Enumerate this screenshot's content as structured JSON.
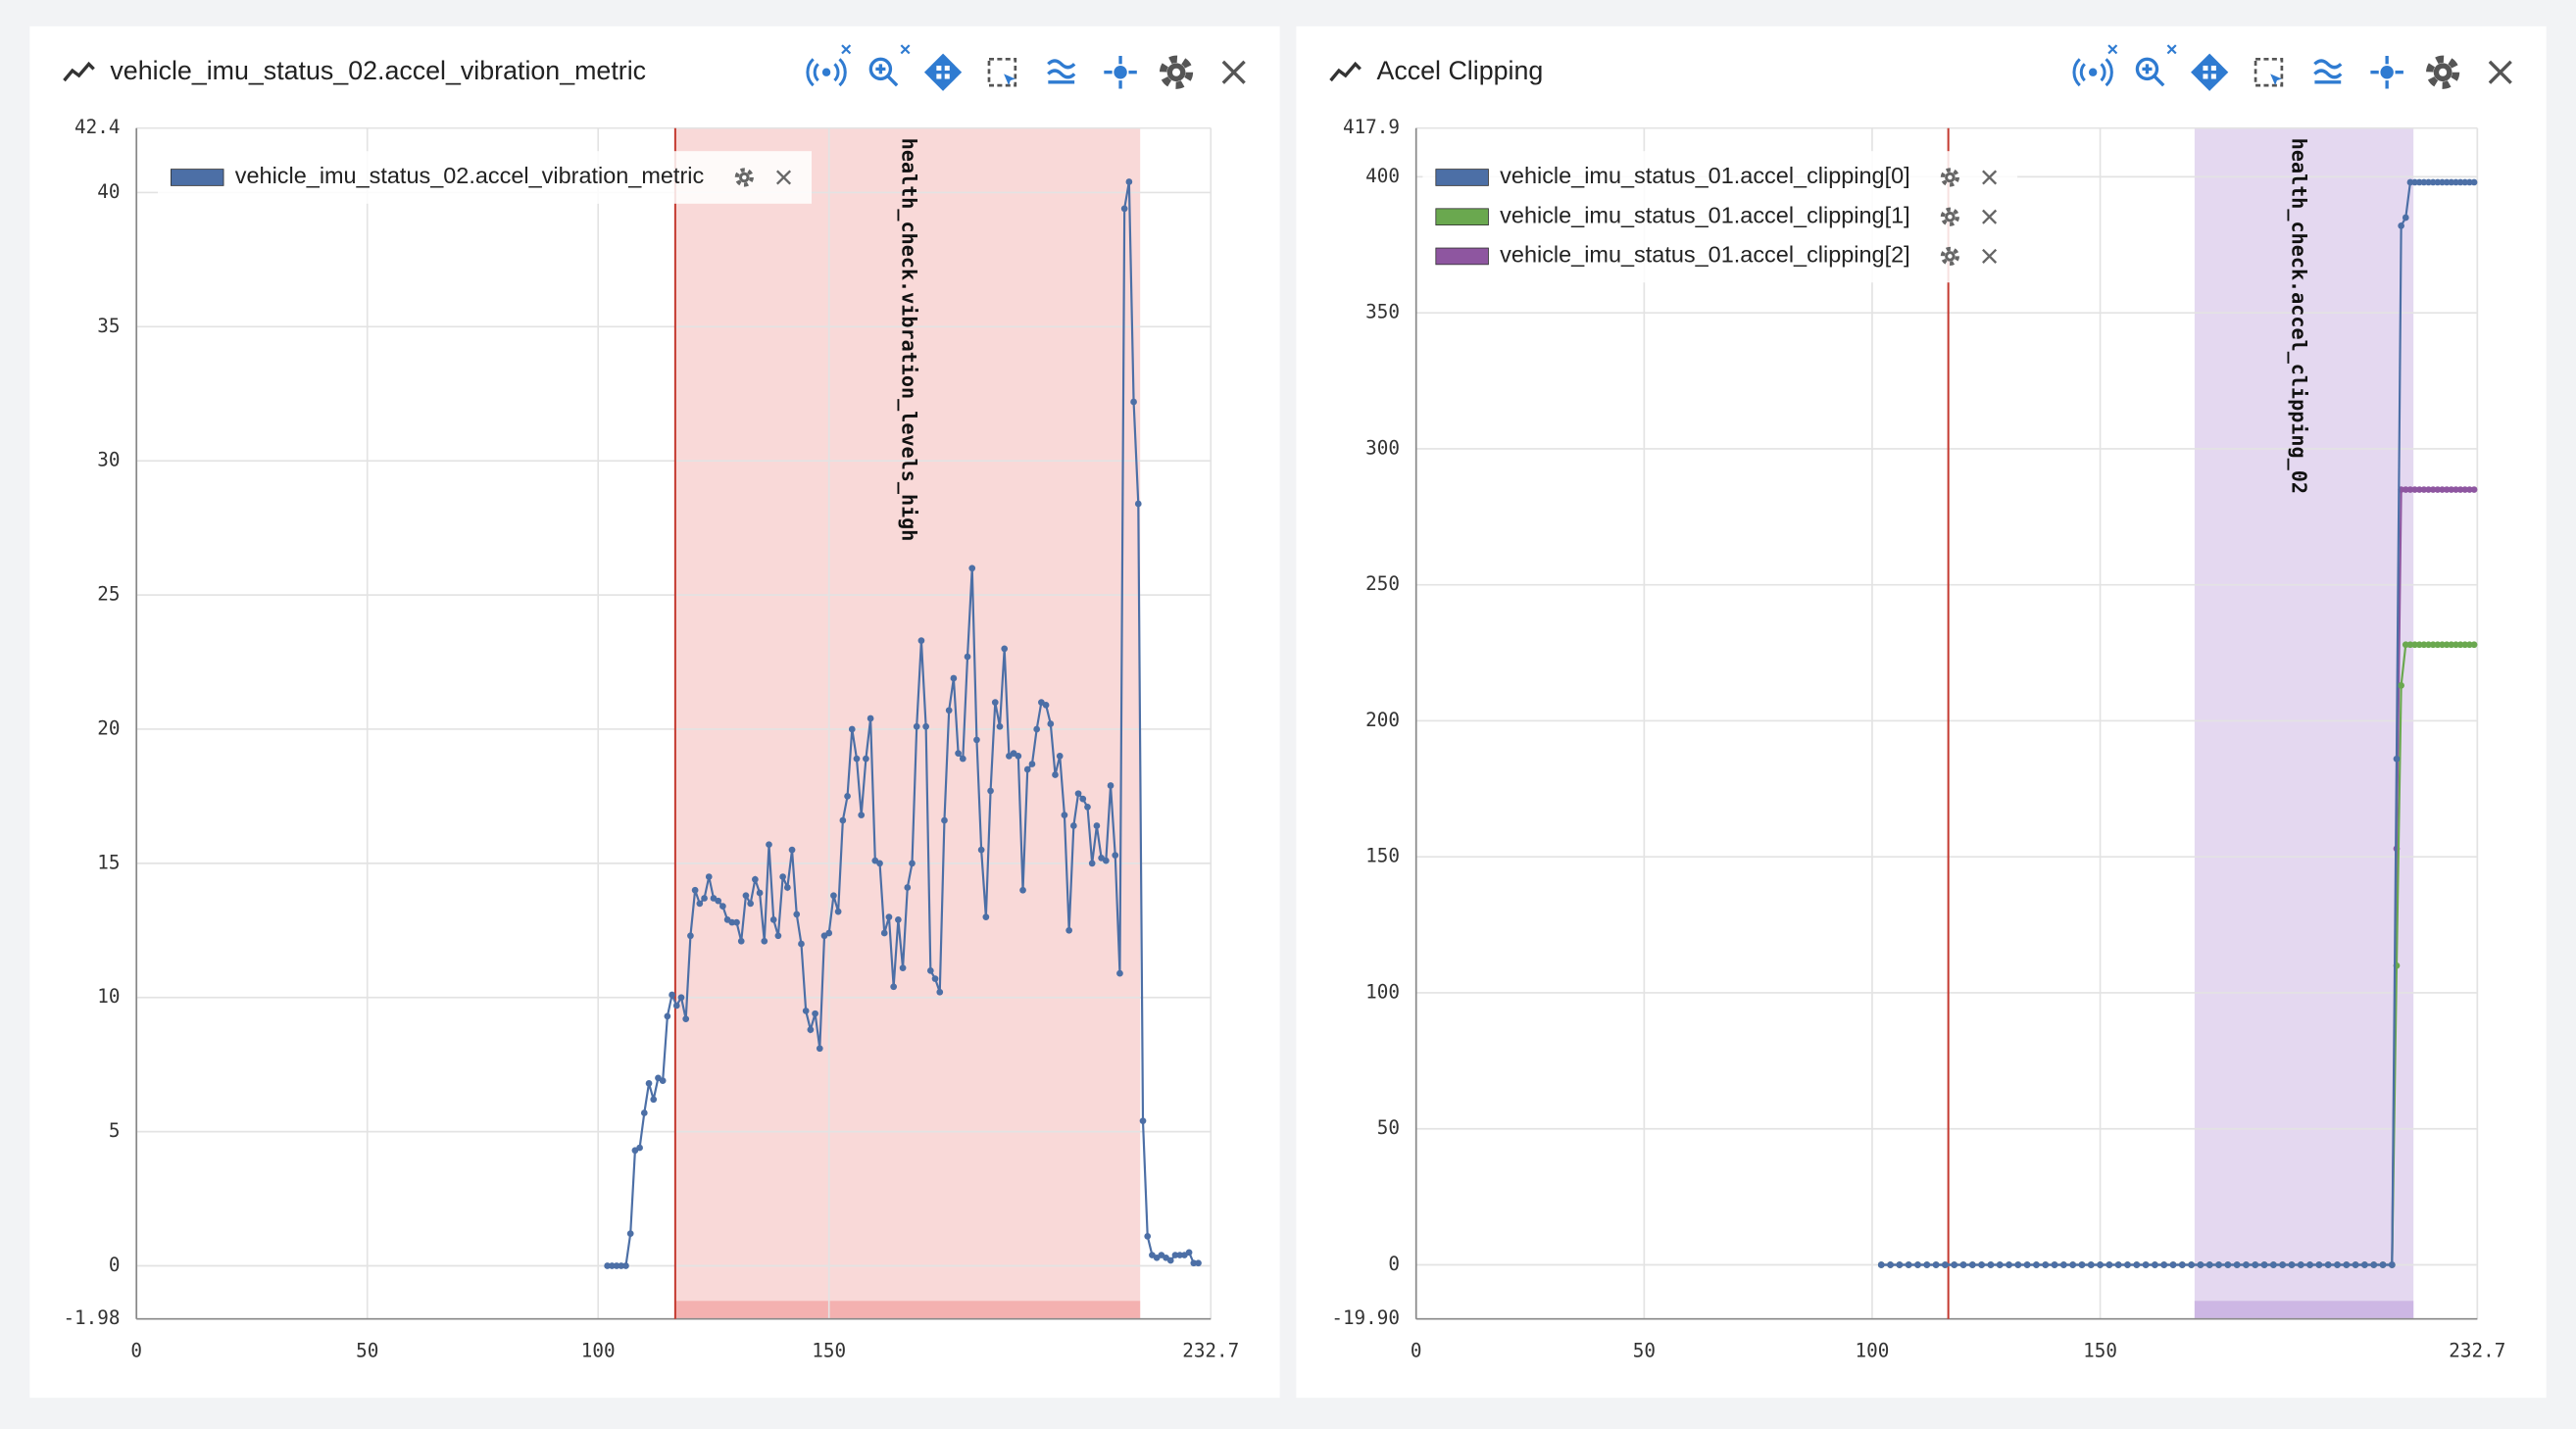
{
  "chart_data": [
    {
      "type": "line",
      "title": "vehicle_imu_status_02.accel_vibration_metric",
      "x": [
        102,
        103,
        104,
        105,
        106,
        107,
        108,
        109,
        110,
        111,
        112,
        113,
        114,
        115,
        116,
        117,
        118,
        119,
        120,
        121,
        122,
        123,
        124,
        125,
        126,
        127,
        128,
        129,
        130,
        131,
        132,
        133,
        134,
        135,
        136,
        137,
        138,
        139,
        140,
        141,
        142,
        143,
        144,
        145,
        146,
        147,
        148,
        149,
        150,
        151,
        152,
        153,
        154,
        155,
        156,
        157,
        158,
        159,
        160,
        161,
        162,
        163,
        164,
        165,
        166,
        167,
        168,
        169,
        170,
        171,
        172,
        173,
        174,
        175,
        176,
        177,
        178,
        179,
        180,
        181,
        182,
        183,
        184,
        185,
        186,
        187,
        188,
        189,
        190,
        191,
        192,
        193,
        194,
        195,
        196,
        197,
        198,
        199,
        200,
        201,
        202,
        203,
        204,
        205,
        206,
        207,
        208,
        209,
        210,
        211,
        212,
        213,
        214,
        215,
        216,
        217,
        218,
        219,
        220,
        221,
        222,
        223,
        224,
        225,
        226,
        227,
        228,
        229,
        230
      ],
      "series": [
        {
          "name": "vehicle_imu_status_02.accel_vibration_metric",
          "color": "#4c6fa6",
          "values": [
            0,
            0,
            0,
            0,
            0,
            1.2,
            4.3,
            4.4,
            5.7,
            6.8,
            6.2,
            7.0,
            6.9,
            9.3,
            10.1,
            9.7,
            10.0,
            9.2,
            12.3,
            14.0,
            13.5,
            13.7,
            14.5,
            13.7,
            13.6,
            13.4,
            12.9,
            12.8,
            12.8,
            12.1,
            13.8,
            13.5,
            14.4,
            13.9,
            12.1,
            15.7,
            12.9,
            12.3,
            14.5,
            14.1,
            15.5,
            13.1,
            12.0,
            9.5,
            8.8,
            9.4,
            8.1,
            12.3,
            12.4,
            13.8,
            13.2,
            16.6,
            17.5,
            20.0,
            18.9,
            16.8,
            18.9,
            20.4,
            15.1,
            15.0,
            12.4,
            13.0,
            10.4,
            12.9,
            11.1,
            14.1,
            15.0,
            20.1,
            23.3,
            20.1,
            11.0,
            10.7,
            10.2,
            16.6,
            20.7,
            21.9,
            19.1,
            18.9,
            22.7,
            26.0,
            19.6,
            15.5,
            13.0,
            17.7,
            21.0,
            20.1,
            23.0,
            19.0,
            19.1,
            19.0,
            14.0,
            18.5,
            18.7,
            20.0,
            21.0,
            20.9,
            20.2,
            18.3,
            19.0,
            16.8,
            12.5,
            16.4,
            17.6,
            17.4,
            17.1,
            15.0,
            16.4,
            15.2,
            15.1,
            17.9,
            15.3,
            10.9,
            39.4,
            40.4,
            32.2,
            28.4,
            5.4,
            1.1,
            0.4,
            0.3,
            0.4,
            0.3,
            0.2,
            0.4,
            0.4,
            0.4,
            0.5,
            0.1,
            0.1
          ]
        }
      ],
      "xlim": [
        0,
        232.7
      ],
      "xticks": [
        0,
        50,
        100,
        150,
        232.7
      ],
      "ylim": [
        -1.98,
        42.4
      ],
      "yticks": [
        -1.98,
        0,
        5,
        10,
        15,
        20,
        25,
        30,
        35,
        40,
        42.4
      ],
      "grid": true,
      "vline": {
        "x": 116.7,
        "color": "#c43a30"
      },
      "span": {
        "start": 116.7,
        "end": 217.4,
        "label": "health_check.vibration_levels_high",
        "color": "#f9d9d8",
        "band_color": "#f4b1b0"
      }
    },
    {
      "type": "line",
      "title": "Accel Clipping",
      "x": [
        102,
        104,
        106,
        108,
        110,
        112,
        114,
        116,
        118,
        120,
        122,
        124,
        126,
        128,
        130,
        132,
        134,
        136,
        138,
        140,
        142,
        144,
        146,
        148,
        150,
        152,
        154,
        156,
        158,
        160,
        162,
        164,
        166,
        168,
        170,
        172,
        174,
        176,
        178,
        180,
        182,
        184,
        186,
        188,
        190,
        192,
        194,
        196,
        198,
        200,
        202,
        204,
        206,
        208,
        210,
        212,
        214,
        215,
        216,
        217,
        218,
        219,
        220,
        221,
        222,
        223,
        224,
        225,
        226,
        227,
        228,
        229,
        230,
        231,
        232
      ],
      "series": [
        {
          "name": "vehicle_imu_status_01.accel_clipping[0]",
          "color": "#4c6fa6",
          "values": [
            0,
            0,
            0,
            0,
            0,
            0,
            0,
            0,
            0,
            0,
            0,
            0,
            0,
            0,
            0,
            0,
            0,
            0,
            0,
            0,
            0,
            0,
            0,
            0,
            0,
            0,
            0,
            0,
            0,
            0,
            0,
            0,
            0,
            0,
            0,
            0,
            0,
            0,
            0,
            0,
            0,
            0,
            0,
            0,
            0,
            0,
            0,
            0,
            0,
            0,
            0,
            0,
            0,
            0,
            0,
            0,
            0,
            186,
            382,
            385,
            398,
            398,
            398,
            398,
            398,
            398,
            398,
            398,
            398,
            398,
            398,
            398,
            398,
            398,
            398
          ]
        },
        {
          "name": "vehicle_imu_status_01.accel_clipping[1]",
          "color": "#6aa84f",
          "values": [
            0,
            0,
            0,
            0,
            0,
            0,
            0,
            0,
            0,
            0,
            0,
            0,
            0,
            0,
            0,
            0,
            0,
            0,
            0,
            0,
            0,
            0,
            0,
            0,
            0,
            0,
            0,
            0,
            0,
            0,
            0,
            0,
            0,
            0,
            0,
            0,
            0,
            0,
            0,
            0,
            0,
            0,
            0,
            0,
            0,
            0,
            0,
            0,
            0,
            0,
            0,
            0,
            0,
            0,
            0,
            0,
            0,
            110,
            213,
            228,
            228,
            228,
            228,
            228,
            228,
            228,
            228,
            228,
            228,
            228,
            228,
            228,
            228,
            228,
            228
          ]
        },
        {
          "name": "vehicle_imu_status_01.accel_clipping[2]",
          "color": "#8e56a0",
          "values": [
            0,
            0,
            0,
            0,
            0,
            0,
            0,
            0,
            0,
            0,
            0,
            0,
            0,
            0,
            0,
            0,
            0,
            0,
            0,
            0,
            0,
            0,
            0,
            0,
            0,
            0,
            0,
            0,
            0,
            0,
            0,
            0,
            0,
            0,
            0,
            0,
            0,
            0,
            0,
            0,
            0,
            0,
            0,
            0,
            0,
            0,
            0,
            0,
            0,
            0,
            0,
            0,
            0,
            0,
            0,
            0,
            0,
            153,
            285,
            285,
            285,
            285,
            285,
            285,
            285,
            285,
            285,
            285,
            285,
            285,
            285,
            285,
            285,
            285,
            285
          ]
        }
      ],
      "xlim": [
        0,
        232.7
      ],
      "xticks": [
        0,
        50,
        100,
        150,
        232.7
      ],
      "ylim": [
        -19.9,
        417.9
      ],
      "yticks": [
        {
          "value": -19.9,
          "label": "-19.90"
        },
        0,
        50,
        100,
        150,
        200,
        250,
        300,
        350,
        400,
        417.9
      ],
      "grid": true,
      "vline": {
        "x": 116.7,
        "color": "#c43a30"
      },
      "span": {
        "start": 170.7,
        "end": 218.7,
        "label": "health_check.accel_clipping_02",
        "color": "#e4d8f0",
        "band_color": "#cdb7e4"
      }
    }
  ]
}
